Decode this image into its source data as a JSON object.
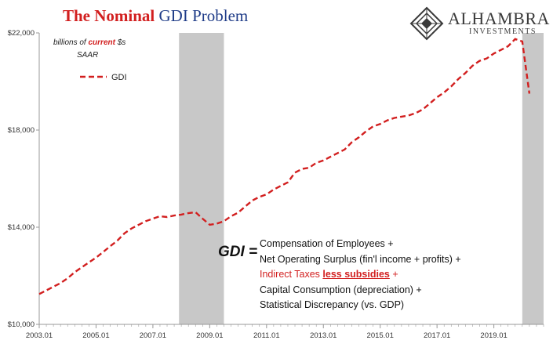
{
  "title": {
    "part1": "The Nominal",
    "part2": "GDI Problem"
  },
  "units": {
    "prefix": "billions of",
    "highlight": "current",
    "suffix": "$s",
    "line2": "SAAR"
  },
  "logo": {
    "name": "ALHAMBRA",
    "sub": "INVESTMENTS"
  },
  "formula": {
    "key": "GDI =",
    "line1": "Compensation of Employees +",
    "line2": "Net Operating Surplus (fin'l income + profits) +",
    "line3_a": "Indirect Taxes",
    "line3_b": "less subsidies",
    "line3_c": "+",
    "line4": "Capital Consumption (depreciation) +",
    "line5": "Statistical Discrepancy (vs. GDP)"
  },
  "colors": {
    "series": "#d21f1f",
    "recession": "#c8c8c8",
    "axis": "#999999",
    "title_blue": "#1f3c88"
  },
  "chart_data": {
    "type": "line",
    "title": "The Nominal GDI Problem",
    "ylabel": "billions of current $s SAAR",
    "ylim": [
      10000,
      22000
    ],
    "yticks": [
      10000,
      14000,
      18000,
      22000
    ],
    "ytick_labels": [
      "$10,000",
      "$14,000",
      "$18,000",
      "$22,000"
    ],
    "xlim": [
      2003.0,
      2020.75
    ],
    "xticks": [
      2003.0,
      2005.0,
      2007.0,
      2009.0,
      2011.0,
      2013.0,
      2015.0,
      2017.0,
      2019.0
    ],
    "xtick_labels": [
      "2003.01",
      "2005.01",
      "2007.01",
      "2009.01",
      "2011.01",
      "2013.01",
      "2015.01",
      "2017.01",
      "2019.01"
    ],
    "grid": false,
    "legend": "top-left",
    "recessions": [
      [
        2007.92,
        2009.5
      ],
      [
        2020.0,
        2020.75
      ]
    ],
    "series": [
      {
        "name": "GDI",
        "style": "dashed",
        "x": [
          2003.0,
          2003.25,
          2003.5,
          2003.75,
          2004.0,
          2004.25,
          2004.5,
          2004.75,
          2005.0,
          2005.25,
          2005.5,
          2005.75,
          2006.0,
          2006.25,
          2006.5,
          2006.75,
          2007.0,
          2007.25,
          2007.5,
          2007.75,
          2008.0,
          2008.25,
          2008.5,
          2008.75,
          2009.0,
          2009.25,
          2009.5,
          2009.75,
          2010.0,
          2010.25,
          2010.5,
          2010.75,
          2011.0,
          2011.25,
          2011.5,
          2011.75,
          2012.0,
          2012.25,
          2012.5,
          2012.75,
          2013.0,
          2013.25,
          2013.5,
          2013.75,
          2014.0,
          2014.25,
          2014.5,
          2014.75,
          2015.0,
          2015.25,
          2015.5,
          2015.75,
          2016.0,
          2016.25,
          2016.5,
          2016.75,
          2017.0,
          2017.25,
          2017.5,
          2017.75,
          2018.0,
          2018.25,
          2018.5,
          2018.75,
          2019.0,
          2019.25,
          2019.5,
          2019.75,
          2020.0,
          2020.25
        ],
        "y": [
          11250,
          11400,
          11550,
          11700,
          11900,
          12150,
          12350,
          12550,
          12750,
          12980,
          13220,
          13450,
          13750,
          13950,
          14100,
          14250,
          14350,
          14450,
          14420,
          14480,
          14520,
          14580,
          14620,
          14350,
          14100,
          14150,
          14250,
          14450,
          14600,
          14850,
          15100,
          15250,
          15350,
          15550,
          15700,
          15850,
          16250,
          16400,
          16450,
          16650,
          16750,
          16900,
          17050,
          17200,
          17500,
          17700,
          17950,
          18150,
          18250,
          18400,
          18500,
          18550,
          18600,
          18700,
          18850,
          19100,
          19350,
          19550,
          19800,
          20100,
          20350,
          20650,
          20850,
          20950,
          21150,
          21300,
          21450,
          21750,
          21650,
          19500
        ]
      }
    ]
  }
}
